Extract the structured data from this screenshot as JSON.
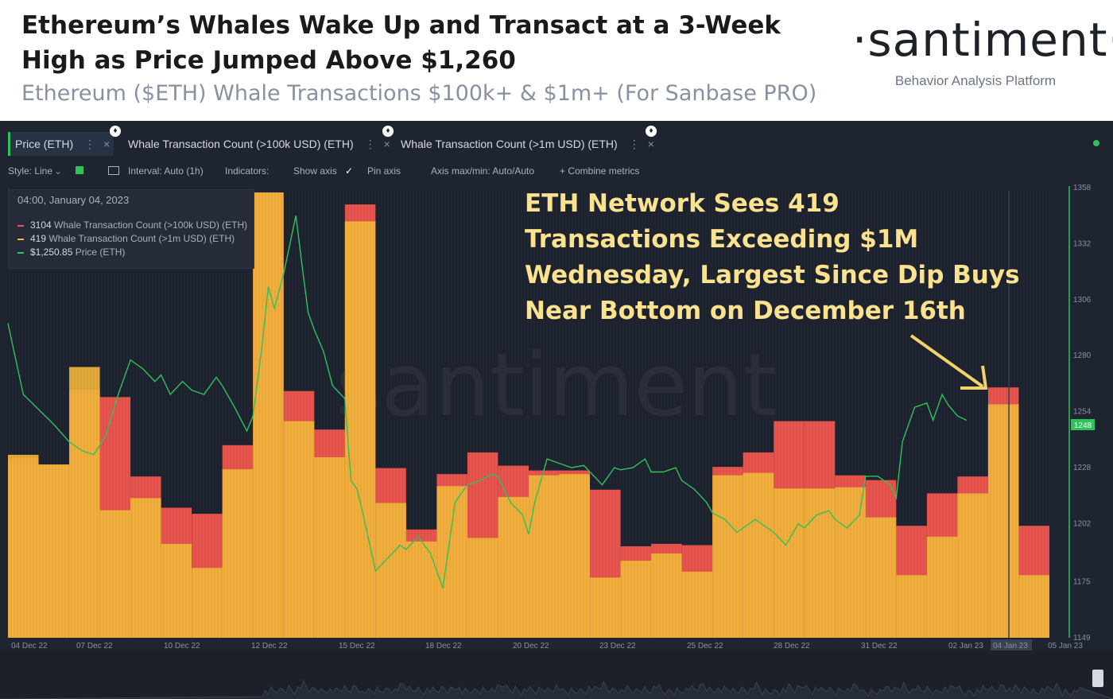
{
  "header": {
    "title_line1": "Ethereum’s Whales Wake Up and Transact at a 3-Week",
    "title_line2": "High as Price Jumped Above $1,260",
    "subtitle": "Ethereum ($ETH) Whale Transactions $100k+ & $1m+ (For Sanbase PRO)"
  },
  "logo": {
    "word": "·santiment·",
    "tagline": "Behavior Analysis Platform"
  },
  "tabs": [
    {
      "label": "Price (ETH)",
      "color": "#2ec25b"
    },
    {
      "label": "Whale Transaction Count (>100k USD) (ETH)",
      "color": "#e8544e"
    },
    {
      "label": "Whale Transaction Count (>1m USD) (ETH)",
      "color": "#f2b73c"
    }
  ],
  "toolbar": {
    "style": "Style: Line",
    "interval": "Interval: Auto (1h)",
    "indicators": "Indicators:",
    "show_axis": "Show axis",
    "pin_axis": "Pin axis",
    "axis_minmax": "Axis max/min: Auto/Auto",
    "combine": "+ Combine metrics"
  },
  "tooltip": {
    "date": "04:00, January 04, 2023",
    "rows": [
      {
        "value": "3104",
        "label": "Whale Transaction Count (>100k USD) (ETH)",
        "color": "#e8544e"
      },
      {
        "value": "419",
        "label": "Whale Transaction Count (>1m USD) (ETH)",
        "color": "#f2b73c"
      },
      {
        "value": "$1,250.85",
        "label": "Price (ETH)",
        "color": "#2ec25b"
      }
    ]
  },
  "annotation": {
    "line1": "ETH Network Sees 419",
    "line2": "Transactions Exceeding $1M",
    "line3": "Wednesday, Largest Since Dip Buys",
    "line4": "Near Bottom on December 16th"
  },
  "watermark": "santiment",
  "colors": {
    "price": "#2ec25b",
    "count_100k": "#e8544e",
    "count_1m": "#f2b73c",
    "background": "#1f2431",
    "annotation": "#fbe28e"
  },
  "chart_data": {
    "type": "bar",
    "title": "Ethereum ($ETH) Whale Transactions $100k+ & $1m+",
    "x_tick_labels": [
      "04 Dec 22",
      "07 Dec 22",
      "10 Dec 22",
      "12 Dec 22",
      "15 Dec 22",
      "18 Dec 22",
      "20 Dec 22",
      "23 Dec 22",
      "25 Dec 22",
      "28 Dec 22",
      "31 Dec 22",
      "02 Jan 23",
      "04 Jan 23",
      "05 Jan 23"
    ],
    "highlighted_tick": "04 Jan 23",
    "price_axis_ticks": [
      1149,
      1175,
      1202,
      1228,
      1254,
      1280,
      1306,
      1332,
      1358
    ],
    "price_axis_range": [
      1149,
      1358
    ],
    "current_price_label": "1248",
    "bar_axis_range": [
      0,
      3700
    ],
    "categories": [
      "2022-12-04a",
      "2022-12-04b",
      "2022-12-05",
      "2022-12-06",
      "2022-12-07",
      "2022-12-08",
      "2022-12-09",
      "2022-12-10",
      "2022-12-11",
      "2022-12-12",
      "2022-12-13",
      "2022-12-14",
      "2022-12-15",
      "2022-12-16",
      "2022-12-17",
      "2022-12-18",
      "2022-12-19",
      "2022-12-20",
      "2022-12-21",
      "2022-12-22",
      "2022-12-23",
      "2022-12-24",
      "2022-12-25",
      "2022-12-26",
      "2022-12-27",
      "2022-12-28",
      "2022-12-29",
      "2022-12-30",
      "2022-12-31",
      "2023-01-01",
      "2023-01-02",
      "2023-01-03",
      "2023-01-04",
      "2023-01-05"
    ],
    "series": [
      {
        "name": "Whale Transaction Count (>100k USD) (ETH)",
        "color": "#e8544e",
        "values": [
          1490,
          1440,
          2060,
          2000,
          1340,
          1080,
          1030,
          1600,
          3700,
          2050,
          1730,
          3600,
          1410,
          900,
          1360,
          1540,
          1430,
          1390,
          1390,
          1230,
          760,
          780,
          770,
          1420,
          1540,
          1800,
          1800,
          1350,
          1310,
          930,
          1200,
          1340,
          2080,
          930
        ]
      },
      {
        "name": "Whale Transaction Count (>1m USD) (ETH)",
        "color": "#f2b73c",
        "values": [
          1520,
          1440,
          2250,
          1060,
          1160,
          780,
          580,
          1400,
          3700,
          1800,
          1500,
          3460,
          1120,
          800,
          1260,
          830,
          1170,
          1350,
          1360,
          500,
          640,
          700,
          550,
          1350,
          1370,
          1240,
          1240,
          1250,
          1000,
          520,
          840,
          1200,
          1940,
          520
        ]
      },
      {
        "name": "Price (ETH)",
        "color": "#2ec25b",
        "points": [
          [
            0,
            1295
          ],
          [
            0.5,
            1262
          ],
          [
            1,
            1255
          ],
          [
            1.5,
            1248
          ],
          [
            2,
            1240
          ],
          [
            2.4,
            1236
          ],
          [
            2.8,
            1234
          ],
          [
            3.2,
            1243
          ],
          [
            3.6,
            1262
          ],
          [
            4,
            1278
          ],
          [
            4.4,
            1274
          ],
          [
            4.8,
            1268
          ],
          [
            5,
            1271
          ],
          [
            5.3,
            1262
          ],
          [
            5.7,
            1268
          ],
          [
            6,
            1264
          ],
          [
            6.4,
            1262
          ],
          [
            6.8,
            1270
          ],
          [
            7,
            1266
          ],
          [
            7.4,
            1256
          ],
          [
            7.8,
            1245
          ],
          [
            8,
            1252
          ],
          [
            8.3,
            1285
          ],
          [
            8.5,
            1312
          ],
          [
            8.7,
            1302
          ],
          [
            9,
            1318
          ],
          [
            9.4,
            1345
          ],
          [
            9.6,
            1322
          ],
          [
            9.8,
            1300
          ],
          [
            10,
            1292
          ],
          [
            10.3,
            1282
          ],
          [
            10.6,
            1266
          ],
          [
            11,
            1260
          ],
          [
            11.2,
            1222
          ],
          [
            11.4,
            1218
          ],
          [
            11.6,
            1206
          ],
          [
            12,
            1180
          ],
          [
            12.4,
            1186
          ],
          [
            12.8,
            1192
          ],
          [
            13,
            1190
          ],
          [
            13.4,
            1196
          ],
          [
            13.8,
            1188
          ],
          [
            14,
            1180
          ],
          [
            14.2,
            1172
          ],
          [
            14.6,
            1212
          ],
          [
            15,
            1220
          ],
          [
            15.4,
            1222
          ],
          [
            15.8,
            1225
          ],
          [
            16,
            1224
          ],
          [
            16.4,
            1212
          ],
          [
            16.8,
            1206
          ],
          [
            17,
            1197
          ],
          [
            17.2,
            1212
          ],
          [
            17.6,
            1232
          ],
          [
            18,
            1230
          ],
          [
            18.4,
            1228
          ],
          [
            18.8,
            1229
          ],
          [
            19,
            1226
          ],
          [
            19.4,
            1220
          ],
          [
            19.8,
            1228
          ],
          [
            20,
            1227
          ],
          [
            20.4,
            1228
          ],
          [
            20.8,
            1232
          ],
          [
            21,
            1226
          ],
          [
            21.4,
            1226
          ],
          [
            21.8,
            1228
          ],
          [
            22,
            1222
          ],
          [
            22.4,
            1218
          ],
          [
            22.8,
            1212
          ],
          [
            23,
            1207
          ],
          [
            23.4,
            1204
          ],
          [
            23.8,
            1198
          ],
          [
            24,
            1200
          ],
          [
            24.4,
            1204
          ],
          [
            24.8,
            1200
          ],
          [
            25,
            1198
          ],
          [
            25.4,
            1192
          ],
          [
            25.8,
            1202
          ],
          [
            26,
            1200
          ],
          [
            26.4,
            1206
          ],
          [
            26.8,
            1208
          ],
          [
            27,
            1204
          ],
          [
            27.4,
            1200
          ],
          [
            27.8,
            1206
          ],
          [
            28,
            1224
          ],
          [
            28.4,
            1224
          ],
          [
            28.8,
            1220
          ],
          [
            29,
            1214
          ],
          [
            29.2,
            1240
          ],
          [
            29.6,
            1256
          ],
          [
            30,
            1258
          ],
          [
            30.2,
            1250
          ],
          [
            30.5,
            1262
          ],
          [
            30.7,
            1257
          ],
          [
            31,
            1252
          ],
          [
            31.3,
            1250
          ]
        ]
      }
    ]
  }
}
